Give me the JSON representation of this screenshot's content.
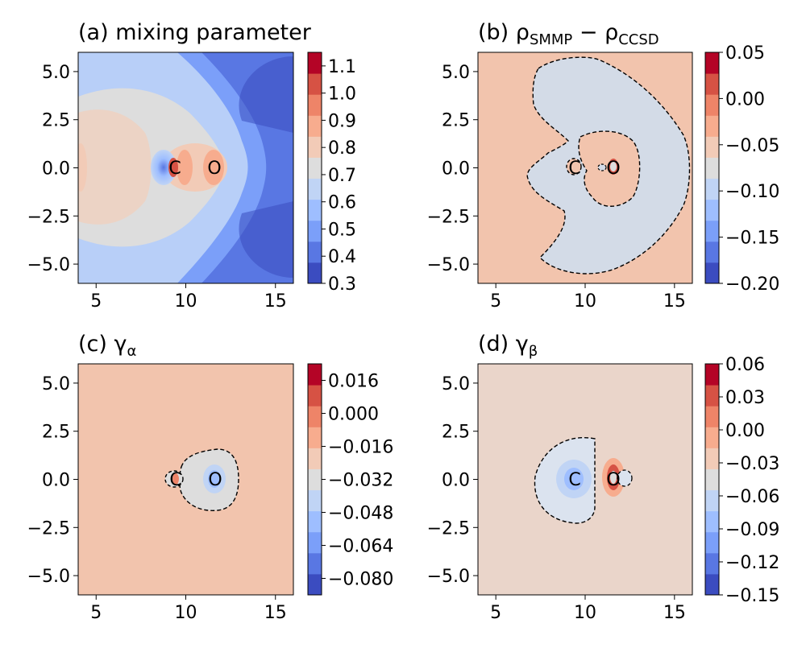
{
  "colors": {
    "ramp": [
      "#3b4cc0",
      "#5977e3",
      "#7b9ff9",
      "#9ebeff",
      "#c0d4f5",
      "#dddddd",
      "#f2cbb7",
      "#f7ac8e",
      "#ee8468",
      "#d65244",
      "#b40426"
    ]
  },
  "chart_data": [
    {
      "id": "a",
      "type": "heatmap",
      "title": "(a) mixing parameter",
      "x_ticks": [
        "5",
        "10",
        "15"
      ],
      "y_ticks": [
        "5.0",
        "2.5",
        "0.0",
        "−2.5",
        "−5.0"
      ],
      "xlim": [
        4,
        16
      ],
      "ylim": [
        -6,
        6
      ],
      "x_tick_values": [
        5,
        10,
        15
      ],
      "y_tick_values": [
        5.0,
        2.5,
        0.0,
        -2.5,
        -5.0
      ],
      "colorbar_ticks": [
        "1.1",
        "1.0",
        "0.9",
        "0.8",
        "0.7",
        "0.6",
        "0.5",
        "0.4",
        "0.3"
      ],
      "colorbar_values": [
        1.1,
        1.0,
        0.9,
        0.8,
        0.7,
        0.6,
        0.5,
        0.4,
        0.3
      ],
      "colorbar_range": [
        0.3,
        1.15
      ],
      "atoms": [
        {
          "label": "C",
          "x": 9.3,
          "y": 0.0
        },
        {
          "label": "O",
          "x": 11.5,
          "y": 0.0
        }
      ]
    },
    {
      "id": "b",
      "type": "heatmap",
      "title": "(b) ρ",
      "title_sub1": "SMMP",
      "title_mid": " − ρ",
      "title_sub2": "CCSD",
      "x_ticks": [
        "5",
        "10",
        "15"
      ],
      "y_ticks": [
        "5.0",
        "2.5",
        "0.0",
        "−2.5",
        "−5.0"
      ],
      "xlim": [
        4,
        16
      ],
      "ylim": [
        -6,
        6
      ],
      "x_tick_values": [
        5,
        10,
        15
      ],
      "y_tick_values": [
        5.0,
        2.5,
        0.0,
        -2.5,
        -5.0
      ],
      "colorbar_ticks": [
        "0.05",
        "0.00",
        "−0.05",
        "−0.10",
        "−0.15",
        "−0.20"
      ],
      "colorbar_values": [
        0.05,
        0.0,
        -0.05,
        -0.1,
        -0.15,
        -0.2
      ],
      "colorbar_range": [
        -0.2,
        0.05
      ],
      "atoms": [
        {
          "label": "C",
          "x": 9.5,
          "y": 0.0
        },
        {
          "label": "O",
          "x": 11.6,
          "y": 0.0
        }
      ]
    },
    {
      "id": "c",
      "type": "heatmap",
      "title": "(c) γ",
      "title_sub": "α",
      "x_ticks": [
        "5",
        "10",
        "15"
      ],
      "y_ticks": [
        "5.0",
        "2.5",
        "0.0",
        "−2.5",
        "−5.0"
      ],
      "xlim": [
        4,
        16
      ],
      "ylim": [
        -6,
        6
      ],
      "x_tick_values": [
        5,
        10,
        15
      ],
      "y_tick_values": [
        5.0,
        2.5,
        0.0,
        -2.5,
        -5.0
      ],
      "colorbar_ticks": [
        "0.016",
        "0.000",
        "−0.016",
        "−0.032",
        "−0.048",
        "−0.064",
        "−0.080"
      ],
      "colorbar_values": [
        0.016,
        0.0,
        -0.016,
        -0.032,
        -0.048,
        -0.064,
        -0.08
      ],
      "colorbar_range": [
        -0.088,
        0.024
      ],
      "atoms": [
        {
          "label": "C",
          "x": 9.3,
          "y": 0.0
        },
        {
          "label": "O",
          "x": 11.6,
          "y": 0.0
        }
      ]
    },
    {
      "id": "d",
      "type": "heatmap",
      "title": "(d) γ",
      "title_sub": "β",
      "x_ticks": [
        "5",
        "10",
        "15"
      ],
      "y_ticks": [
        "5.0",
        "2.5",
        "0.0",
        "−2.5",
        "−5.0"
      ],
      "xlim": [
        4,
        16
      ],
      "ylim": [
        -6,
        6
      ],
      "x_tick_values": [
        5,
        10,
        15
      ],
      "y_tick_values": [
        5.0,
        2.5,
        0.0,
        -2.5,
        -5.0
      ],
      "colorbar_ticks": [
        "0.06",
        "0.03",
        "0.00",
        "−0.03",
        "−0.06",
        "−0.09",
        "−0.12",
        "−0.15"
      ],
      "colorbar_values": [
        0.06,
        0.03,
        0.0,
        -0.03,
        -0.06,
        -0.09,
        -0.12,
        -0.15
      ],
      "colorbar_range": [
        -0.15,
        0.06
      ],
      "atoms": [
        {
          "label": "C",
          "x": 9.5,
          "y": 0.0
        },
        {
          "label": "O",
          "x": 11.6,
          "y": 0.0
        }
      ]
    }
  ]
}
